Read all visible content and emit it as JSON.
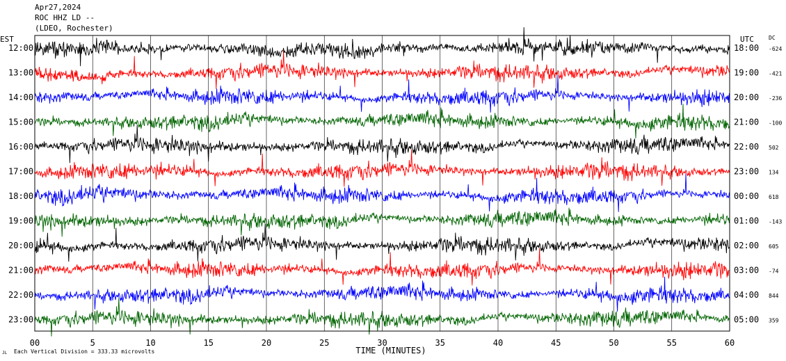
{
  "header": {
    "date": "Apr27,2024",
    "station": "ROC HHZ LD --",
    "network": "(LDEO, Rochester)"
  },
  "chart_data": {
    "type": "line",
    "title": "",
    "xlabel": "TIME (MINUTES)",
    "left_axis_label": "EST",
    "right_axis_label": "UTC",
    "dc_label": "DC",
    "xlim": [
      0,
      60
    ],
    "xticks": [
      0,
      5,
      10,
      15,
      20,
      25,
      30,
      35,
      40,
      45,
      50,
      55,
      60
    ],
    "xtick_labels": [
      "00",
      "5",
      "10",
      "15",
      "20",
      "25",
      "30",
      "35",
      "40",
      "45",
      "50",
      "55",
      "60"
    ],
    "trace_colors": [
      "#000000",
      "#ff0000",
      "#0000ff",
      "#006400"
    ],
    "rows": [
      {
        "est": "12:00",
        "utc": "18:00",
        "dc": "-624",
        "color": "#000000"
      },
      {
        "est": "13:00",
        "utc": "19:00",
        "dc": "-421",
        "color": "#ff0000"
      },
      {
        "est": "14:00",
        "utc": "20:00",
        "dc": "-236",
        "color": "#0000ff"
      },
      {
        "est": "15:00",
        "utc": "21:00",
        "dc": "-100",
        "color": "#006400"
      },
      {
        "est": "16:00",
        "utc": "22:00",
        "dc": "502",
        "color": "#000000"
      },
      {
        "est": "17:00",
        "utc": "23:00",
        "dc": "134",
        "color": "#ff0000"
      },
      {
        "est": "18:00",
        "utc": "00:00",
        "dc": "618",
        "color": "#0000ff"
      },
      {
        "est": "19:00",
        "utc": "01:00",
        "dc": "-143",
        "color": "#006400"
      },
      {
        "est": "20:00",
        "utc": "02:00",
        "dc": "605",
        "color": "#000000"
      },
      {
        "est": "21:00",
        "utc": "03:00",
        "dc": "-74",
        "color": "#ff0000"
      },
      {
        "est": "22:00",
        "utc": "04:00",
        "dc": "844",
        "color": "#0000ff"
      },
      {
        "est": "23:00",
        "utc": "05:00",
        "dc": "359",
        "color": "#006400"
      }
    ],
    "scale_note": "Each Vertical Division =  333.33 microvolts",
    "corner_mark": "JL"
  }
}
